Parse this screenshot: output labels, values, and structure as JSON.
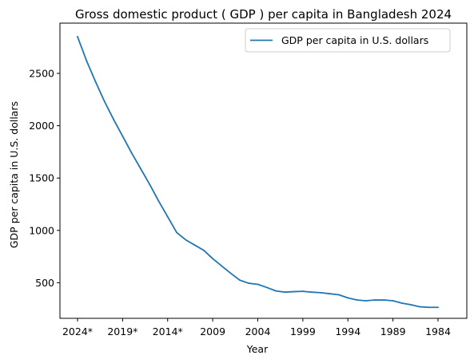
{
  "chart_data": {
    "type": "line",
    "title": "Gross domestic product ( GDP ) per capita in Bangladesh 2024",
    "xlabel": "Year",
    "ylabel": "GDP per capita in U.S. dollars",
    "legend_position": "top-right",
    "grid": false,
    "categories": [
      "2024*",
      "2023*",
      "2022*",
      "2021*",
      "2020*",
      "2019*",
      "2018*",
      "2017*",
      "2016*",
      "2015*",
      "2014*",
      "2013",
      "2012",
      "2011",
      "2010",
      "2009",
      "2008",
      "2007",
      "2006",
      "2005",
      "2004",
      "2003",
      "2002",
      "2001",
      "2000",
      "1999",
      "1998",
      "1997",
      "1996",
      "1995",
      "1994",
      "1993",
      "1992",
      "1991",
      "1990",
      "1989",
      "1988",
      "1987",
      "1986",
      "1985",
      "1984"
    ],
    "x_tick_labels": [
      "2024*",
      "2019*",
      "2014*",
      "2009",
      "2004",
      "1999",
      "1994",
      "1989",
      "1984"
    ],
    "series": [
      {
        "name": "GDP per capita in U.S. dollars",
        "color": "#1f77b4",
        "values": [
          2850,
          2620,
          2420,
          2230,
          2060,
          1900,
          1740,
          1590,
          1440,
          1280,
          1130,
          980,
          910,
          860,
          810,
          730,
          660,
          590,
          525,
          495,
          485,
          455,
          422,
          410,
          415,
          418,
          410,
          405,
          395,
          385,
          355,
          335,
          328,
          335,
          335,
          328,
          305,
          290,
          270,
          265,
          265
        ]
      }
    ],
    "ylim": [
      160,
      2980
    ],
    "y_ticks": [
      500,
      1000,
      1500,
      2000,
      2500
    ]
  }
}
